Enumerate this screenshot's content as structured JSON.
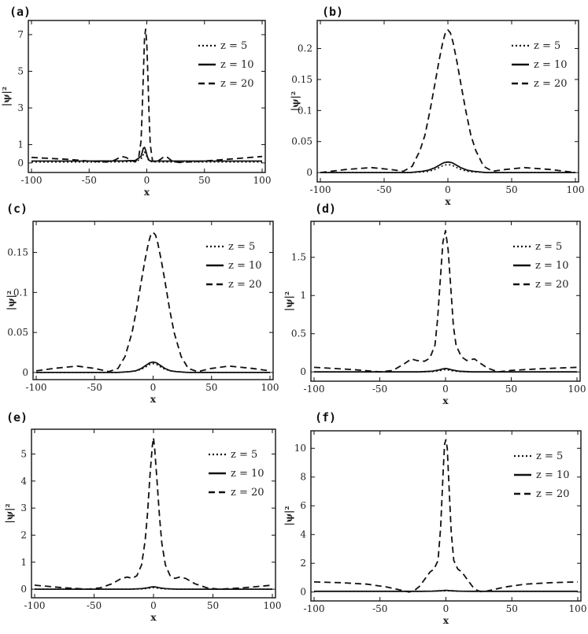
{
  "legend_entries": [
    "z = 5",
    "z = 10",
    "z = 20"
  ],
  "series_colors": [
    "#111111",
    "#111111",
    "#111111"
  ],
  "chart_data": [
    {
      "panel_label": "(a)",
      "type": "line",
      "xlabel": "x",
      "ylabel": "|ψ|²",
      "xlim": [
        -100,
        100
      ],
      "ylim": [
        -0.35,
        7.6
      ],
      "xticks": [
        -100,
        -50,
        0,
        50,
        100
      ],
      "yticks": [
        0,
        1,
        3,
        5,
        7
      ],
      "legend_position": "top-right",
      "series": [
        {
          "name": "z = 5",
          "style": "dotted",
          "x": [
            -100,
            -50,
            -20,
            -10,
            -5,
            -3,
            -2,
            -1,
            0,
            1,
            2,
            3,
            5,
            10,
            20,
            50,
            100
          ],
          "y": [
            0.05,
            0.05,
            0.06,
            0.08,
            0.2,
            0.45,
            0.6,
            0.5,
            0.35,
            0.2,
            0.12,
            0.08,
            0.06,
            0.05,
            0.05,
            0.05,
            0.05
          ]
        },
        {
          "name": "z = 10",
          "style": "solid",
          "x": [
            -100,
            -50,
            -20,
            -10,
            -5,
            -3,
            -2,
            -1,
            0,
            1,
            2,
            3,
            5,
            10,
            20,
            50,
            100
          ],
          "y": [
            0.1,
            0.1,
            0.11,
            0.13,
            0.35,
            0.8,
            0.85,
            0.7,
            0.45,
            0.25,
            0.15,
            0.11,
            0.1,
            0.1,
            0.1,
            0.1,
            0.1
          ]
        },
        {
          "name": "z = 20",
          "style": "dashed",
          "x": [
            -100,
            -70,
            -50,
            -35,
            -28,
            -22,
            -18,
            -14,
            -10,
            -7,
            -5,
            -4,
            -3,
            -2,
            -1,
            0,
            1,
            2,
            3,
            5,
            8,
            12,
            15,
            18,
            22,
            28,
            35,
            50,
            70,
            100
          ],
          "y": [
            0.3,
            0.2,
            0.1,
            0.05,
            0.15,
            0.35,
            0.3,
            0.15,
            0.05,
            0.3,
            1.2,
            2.8,
            4.8,
            6.8,
            7.3,
            6.5,
            4.6,
            2.6,
            1.0,
            0.1,
            0.05,
            0.2,
            0.35,
            0.3,
            0.1,
            0.02,
            0.05,
            0.1,
            0.2,
            0.35
          ]
        }
      ]
    },
    {
      "panel_label": "(b)",
      "type": "line",
      "xlabel": "x",
      "ylabel": "|ψ|²",
      "xlim": [
        -100,
        100
      ],
      "ylim": [
        -0.01,
        0.24
      ],
      "xticks": [
        -100,
        -50,
        0,
        50,
        100
      ],
      "yticks": [
        0,
        0.05,
        0.1,
        0.15,
        0.2
      ],
      "legend_position": "top-right",
      "series": [
        {
          "name": "z = 5",
          "style": "dotted",
          "x": [
            -100,
            -30,
            -20,
            -15,
            -10,
            -5,
            -3,
            0,
            3,
            5,
            10,
            15,
            20,
            30,
            100
          ],
          "y": [
            0,
            0,
            0.001,
            0.002,
            0.005,
            0.01,
            0.012,
            0.013,
            0.012,
            0.01,
            0.005,
            0.002,
            0.001,
            0,
            0
          ]
        },
        {
          "name": "z = 10",
          "style": "solid",
          "x": [
            -100,
            -30,
            -20,
            -15,
            -10,
            -5,
            -3,
            0,
            3,
            5,
            10,
            15,
            20,
            30,
            100
          ],
          "y": [
            0,
            0,
            0.002,
            0.004,
            0.008,
            0.014,
            0.016,
            0.017,
            0.016,
            0.014,
            0.008,
            0.004,
            0.002,
            0,
            0
          ]
        },
        {
          "name": "z = 20",
          "style": "dashed",
          "x": [
            -100,
            -80,
            -60,
            -45,
            -35,
            -28,
            -22,
            -18,
            -14,
            -10,
            -7,
            -4,
            -2,
            0,
            2,
            4,
            7,
            10,
            14,
            18,
            22,
            28,
            35,
            45,
            60,
            80,
            100
          ],
          "y": [
            0,
            0.005,
            0.008,
            0.005,
            0.002,
            0.01,
            0.035,
            0.06,
            0.1,
            0.145,
            0.18,
            0.21,
            0.225,
            0.23,
            0.225,
            0.21,
            0.18,
            0.145,
            0.1,
            0.06,
            0.035,
            0.01,
            0.002,
            0.005,
            0.008,
            0.005,
            0
          ]
        }
      ]
    },
    {
      "panel_label": "(c)",
      "type": "line",
      "xlabel": "x",
      "ylabel": "|ψ|²",
      "xlim": [
        -100,
        100
      ],
      "ylim": [
        -0.005,
        0.185
      ],
      "xticks": [
        -100,
        -50,
        0,
        50,
        100
      ],
      "yticks": [
        0,
        0.05,
        0.1,
        0.15
      ],
      "legend_position": "top-right",
      "series": [
        {
          "name": "z = 5",
          "style": "dotted",
          "x": [
            -100,
            -30,
            -20,
            -15,
            -10,
            -5,
            -3,
            0,
            3,
            5,
            10,
            15,
            20,
            30,
            100
          ],
          "y": [
            0,
            0,
            0.001,
            0.002,
            0.004,
            0.008,
            0.01,
            0.011,
            0.01,
            0.008,
            0.004,
            0.002,
            0.001,
            0,
            0
          ]
        },
        {
          "name": "z = 10",
          "style": "solid",
          "x": [
            -100,
            -30,
            -20,
            -15,
            -10,
            -5,
            -3,
            0,
            3,
            5,
            10,
            15,
            20,
            30,
            100
          ],
          "y": [
            0,
            0,
            0.001,
            0.002,
            0.005,
            0.01,
            0.012,
            0.013,
            0.012,
            0.01,
            0.005,
            0.002,
            0.001,
            0,
            0
          ]
        },
        {
          "name": "z = 20",
          "style": "dashed",
          "x": [
            -100,
            -85,
            -65,
            -50,
            -38,
            -30,
            -24,
            -18,
            -14,
            -10,
            -7,
            -4,
            -2,
            0,
            2,
            4,
            7,
            10,
            14,
            18,
            24,
            30,
            38,
            50,
            65,
            85,
            100
          ],
          "y": [
            0.002,
            0.005,
            0.008,
            0.005,
            0.001,
            0.005,
            0.02,
            0.05,
            0.08,
            0.115,
            0.14,
            0.162,
            0.172,
            0.175,
            0.172,
            0.162,
            0.14,
            0.115,
            0.08,
            0.05,
            0.02,
            0.005,
            0.001,
            0.005,
            0.008,
            0.005,
            0.002
          ]
        }
      ]
    },
    {
      "panel_label": "(d)",
      "type": "line",
      "xlabel": "x",
      "ylabel": "|ψ|²",
      "xlim": [
        -100,
        100
      ],
      "ylim": [
        -0.08,
        1.93
      ],
      "xticks": [
        -100,
        -50,
        0,
        50,
        100
      ],
      "yticks": [
        0,
        0.5,
        1,
        1.5
      ],
      "legend_position": "top-right",
      "series": [
        {
          "name": "z = 5",
          "style": "dotted",
          "x": [
            -100,
            -20,
            -10,
            -5,
            -2,
            0,
            2,
            5,
            10,
            20,
            100
          ],
          "y": [
            0,
            0,
            0.005,
            0.015,
            0.025,
            0.03,
            0.025,
            0.015,
            0.005,
            0,
            0
          ]
        },
        {
          "name": "z = 10",
          "style": "solid",
          "x": [
            -100,
            -20,
            -10,
            -5,
            -2,
            0,
            2,
            5,
            10,
            20,
            100
          ],
          "y": [
            0,
            0,
            0.01,
            0.025,
            0.04,
            0.045,
            0.04,
            0.025,
            0.01,
            0,
            0
          ]
        },
        {
          "name": "z = 20",
          "style": "dashed",
          "x": [
            -100,
            -70,
            -50,
            -40,
            -32,
            -26,
            -22,
            -16,
            -12,
            -8,
            -6,
            -4,
            -2,
            0,
            2,
            4,
            6,
            8,
            12,
            16,
            22,
            26,
            32,
            40,
            50,
            70,
            100
          ],
          "y": [
            0.06,
            0.03,
            0.0,
            0.02,
            0.1,
            0.17,
            0.15,
            0.14,
            0.18,
            0.35,
            0.7,
            1.2,
            1.7,
            1.85,
            1.6,
            1.1,
            0.6,
            0.35,
            0.2,
            0.15,
            0.17,
            0.12,
            0.05,
            0.0,
            0.02,
            0.04,
            0.06
          ]
        }
      ]
    },
    {
      "panel_label": "(e)",
      "type": "line",
      "xlabel": "x",
      "ylabel": "|ψ|²",
      "xlim": [
        -100,
        100
      ],
      "ylim": [
        -0.2,
        5.8
      ],
      "xticks": [
        -100,
        -50,
        0,
        50,
        100
      ],
      "yticks": [
        0,
        1,
        2,
        3,
        4,
        5
      ],
      "legend_position": "top-right",
      "series": [
        {
          "name": "z = 5",
          "style": "dotted",
          "x": [
            -100,
            -20,
            -10,
            -5,
            -2,
            0,
            2,
            5,
            10,
            20,
            100
          ],
          "y": [
            0,
            0,
            0.01,
            0.03,
            0.05,
            0.06,
            0.05,
            0.03,
            0.01,
            0,
            0
          ]
        },
        {
          "name": "z = 10",
          "style": "solid",
          "x": [
            -100,
            -20,
            -10,
            -5,
            -2,
            0,
            2,
            5,
            10,
            20,
            100
          ],
          "y": [
            0,
            0,
            0.02,
            0.05,
            0.08,
            0.09,
            0.08,
            0.05,
            0.02,
            0,
            0
          ]
        },
        {
          "name": "z = 20",
          "style": "dashed",
          "x": [
            -100,
            -75,
            -55,
            -45,
            -35,
            -27,
            -22,
            -18,
            -14,
            -10,
            -7,
            -5,
            -3,
            -1,
            0,
            1,
            3,
            5,
            7,
            10,
            14,
            18,
            22,
            27,
            35,
            45,
            55,
            75,
            100
          ],
          "y": [
            0.15,
            0.05,
            0.0,
            0.05,
            0.2,
            0.4,
            0.45,
            0.4,
            0.5,
            0.9,
            1.8,
            2.8,
            4.2,
            5.3,
            5.6,
            5.2,
            4.0,
            2.7,
            1.7,
            0.9,
            0.5,
            0.4,
            0.45,
            0.4,
            0.2,
            0.05,
            0.0,
            0.05,
            0.15
          ]
        }
      ]
    },
    {
      "panel_label": "(f)",
      "type": "line",
      "xlabel": "x",
      "ylabel": "|ψ|²",
      "xlim": [
        -100,
        100
      ],
      "ylim": [
        -0.4,
        11.0
      ],
      "xticks": [
        -100,
        -50,
        0,
        50,
        100
      ],
      "yticks": [
        0,
        2,
        4,
        6,
        8,
        10
      ],
      "legend_position": "top-right",
      "series": [
        {
          "name": "z = 5",
          "style": "dotted",
          "x": [
            -100,
            -20,
            -10,
            -5,
            -2,
            0,
            2,
            5,
            10,
            20,
            100
          ],
          "y": [
            0.05,
            0.05,
            0.06,
            0.07,
            0.08,
            0.08,
            0.08,
            0.07,
            0.06,
            0.05,
            0.05
          ]
        },
        {
          "name": "z = 10",
          "style": "solid",
          "x": [
            -100,
            -20,
            -10,
            -5,
            -2,
            0,
            2,
            5,
            10,
            20,
            100
          ],
          "y": [
            0.05,
            0.05,
            0.06,
            0.08,
            0.1,
            0.12,
            0.1,
            0.08,
            0.06,
            0.05,
            0.05
          ]
        },
        {
          "name": "z = 20",
          "style": "dashed",
          "x": [
            -100,
            -80,
            -60,
            -45,
            -35,
            -28,
            -24,
            -20,
            -16,
            -12,
            -9,
            -6,
            -4,
            -2,
            -1,
            0,
            1,
            2,
            4,
            6,
            9,
            12,
            16,
            20,
            24,
            28,
            35,
            45,
            60,
            80,
            100
          ],
          "y": [
            0.7,
            0.65,
            0.55,
            0.35,
            0.15,
            0.0,
            0.1,
            0.4,
            0.9,
            1.4,
            1.6,
            2.2,
            4.5,
            8.5,
            10.3,
            10.6,
            10.0,
            8.0,
            4.2,
            2.2,
            1.6,
            1.4,
            0.9,
            0.4,
            0.1,
            0.0,
            0.15,
            0.35,
            0.55,
            0.65,
            0.7
          ]
        }
      ]
    }
  ]
}
